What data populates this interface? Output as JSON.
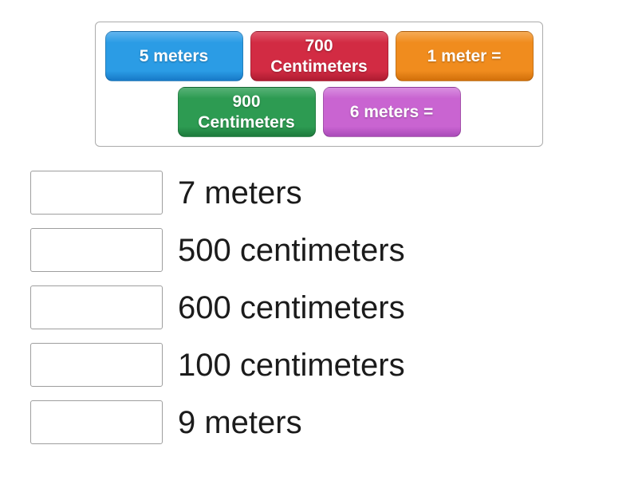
{
  "tray": {
    "tiles": [
      {
        "label": "5 meters",
        "color": "#2b9ce5",
        "color_top": "#62b5ef",
        "color_bottom": "#1779c7"
      },
      {
        "label": "700 Centimeters",
        "color": "#d22b43",
        "color_top": "#e0596d",
        "color_bottom": "#ad1c31"
      },
      {
        "label": "1 meter =",
        "color": "#f08c1e",
        "color_top": "#f5ab57",
        "color_bottom": "#d16f0a"
      },
      {
        "label": "900 Centimeters",
        "color": "#2d9b52",
        "color_top": "#58b277",
        "color_bottom": "#1d7a3c"
      },
      {
        "label": "6 meters =",
        "color": "#c964d1",
        "color_top": "#d98fe0",
        "color_bottom": "#a94ab8"
      }
    ]
  },
  "match_list": {
    "items": [
      {
        "label": "7 meters"
      },
      {
        "label": "500 centimeters"
      },
      {
        "label": "600 centimeters"
      },
      {
        "label": "100 centimeters"
      },
      {
        "label": "9 meters"
      }
    ]
  }
}
